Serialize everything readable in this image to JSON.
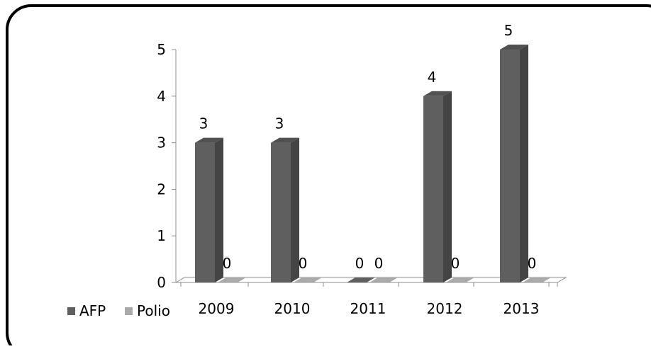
{
  "chart_data": {
    "type": "bar",
    "title": "",
    "xlabel": "",
    "ylabel": "",
    "categories": [
      "2009",
      "2010",
      "2011",
      "2012",
      "2013"
    ],
    "series": [
      {
        "name": "AFP",
        "values": [
          3,
          3,
          0,
          4,
          5
        ],
        "color": "#5f5f5f"
      },
      {
        "name": "Polio",
        "values": [
          0,
          0,
          0,
          0,
          0
        ],
        "color": "#a9a9a9"
      }
    ],
    "data_labels": {
      "AFP": [
        "3",
        "3",
        "0",
        "4",
        "5"
      ],
      "Polio": [
        "0",
        "0",
        "0",
        "0",
        "0"
      ]
    },
    "y_ticks": [
      "0",
      "1",
      "2",
      "3",
      "4",
      "5"
    ],
    "ylim": [
      0,
      5
    ],
    "grid": false,
    "legend_position": "bottom-left",
    "style": "3d-clustered-column"
  }
}
